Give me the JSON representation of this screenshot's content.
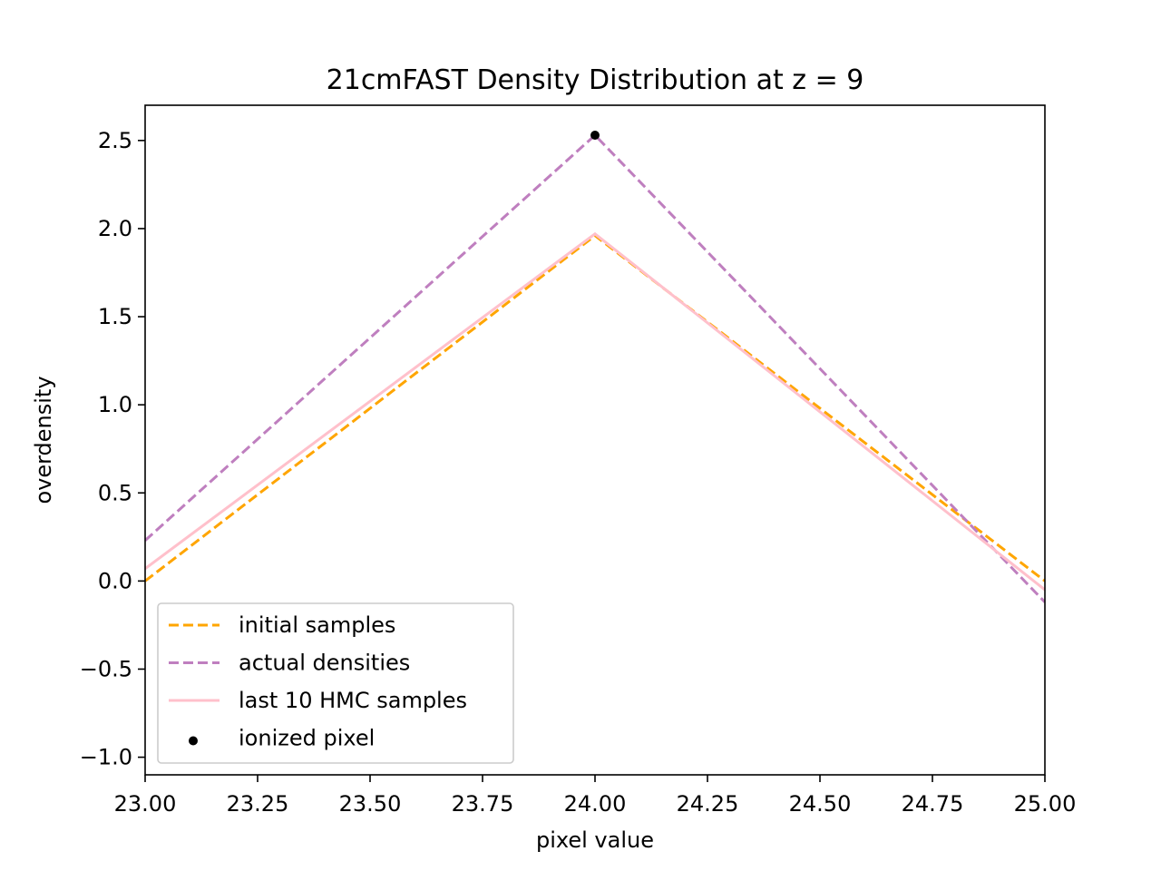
{
  "chart_data": {
    "type": "line",
    "title": "21cmFAST Density Distribution at z = 9",
    "xlabel": "pixel value",
    "ylabel": "overdensity",
    "xlim": [
      23.0,
      25.0
    ],
    "ylim": [
      -1.1,
      2.7
    ],
    "xticks": [
      "23.00",
      "23.25",
      "23.50",
      "23.75",
      "24.00",
      "24.25",
      "24.50",
      "24.75",
      "25.00"
    ],
    "xtick_values": [
      23.0,
      23.25,
      23.5,
      23.75,
      24.0,
      24.25,
      24.5,
      24.75,
      25.0
    ],
    "yticks": [
      "−1.0",
      "−0.5",
      "0.0",
      "0.5",
      "1.0",
      "1.5",
      "2.0",
      "2.5"
    ],
    "ytick_values": [
      -1.0,
      -0.5,
      0.0,
      0.5,
      1.0,
      1.5,
      2.0,
      2.5
    ],
    "grid": false,
    "legend_position": "lower-left",
    "series": [
      {
        "name": "initial samples",
        "style": "dashed",
        "color": "#ffa500",
        "x": [
          23,
          24,
          25
        ],
        "y": [
          0.0,
          1.96,
          0.0
        ]
      },
      {
        "name": "actual densities",
        "style": "dashed",
        "color": "#bf7fbf",
        "x": [
          23,
          24,
          25
        ],
        "y": [
          0.23,
          2.53,
          -0.12
        ]
      },
      {
        "name": "last 10 HMC samples",
        "style": "solid",
        "color": "#ffc0cb",
        "x": [
          23,
          24,
          25
        ],
        "y": [
          0.07,
          1.97,
          -0.05
        ]
      }
    ],
    "points": [
      {
        "name": "ionized pixel",
        "color": "#000000",
        "x": 24.0,
        "y": 2.53
      }
    ]
  }
}
